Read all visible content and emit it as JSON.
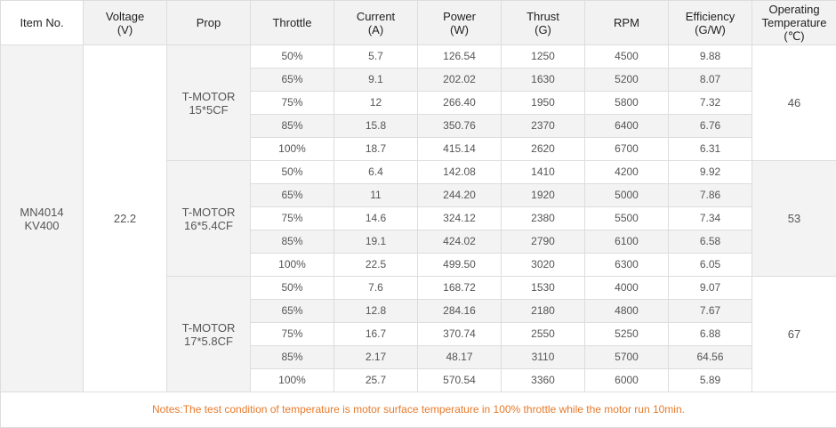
{
  "headers": {
    "item_no": [
      "Item No."
    ],
    "voltage": [
      "Voltage",
      "(V)"
    ],
    "prop": [
      "Prop"
    ],
    "throttle": [
      "Throttle"
    ],
    "current": [
      "Current",
      "(A)"
    ],
    "power": [
      "Power",
      "(W)"
    ],
    "thrust": [
      "Thrust",
      "(G)"
    ],
    "rpm": [
      "RPM"
    ],
    "efficiency": [
      "Efficiency",
      "(G/W)"
    ],
    "temperature": [
      "Operating",
      "Temperature",
      "(℃)"
    ]
  },
  "item": [
    "MN4014",
    "KV400"
  ],
  "voltage": "22.2",
  "groups": [
    {
      "prop": [
        "T-MOTOR",
        "15*5CF"
      ],
      "temperature": "46",
      "rows": [
        [
          "50%",
          "5.7",
          "126.54",
          "1250",
          "4500",
          "9.88"
        ],
        [
          "65%",
          "9.1",
          "202.02",
          "1630",
          "5200",
          "8.07"
        ],
        [
          "75%",
          "12",
          "266.40",
          "1950",
          "5800",
          "7.32"
        ],
        [
          "85%",
          "15.8",
          "350.76",
          "2370",
          "6400",
          "6.76"
        ],
        [
          "100%",
          "18.7",
          "415.14",
          "2620",
          "6700",
          "6.31"
        ]
      ]
    },
    {
      "prop": [
        "T-MOTOR",
        "16*5.4CF"
      ],
      "temperature": "53",
      "rows": [
        [
          "50%",
          "6.4",
          "142.08",
          "1410",
          "4200",
          "9.92"
        ],
        [
          "65%",
          "11",
          "244.20",
          "1920",
          "5000",
          "7.86"
        ],
        [
          "75%",
          "14.6",
          "324.12",
          "2380",
          "5500",
          "7.34"
        ],
        [
          "85%",
          "19.1",
          "424.02",
          "2790",
          "6100",
          "6.58"
        ],
        [
          "100%",
          "22.5",
          "499.50",
          "3020",
          "6300",
          "6.05"
        ]
      ]
    },
    {
      "prop": [
        "T-MOTOR",
        "17*5.8CF"
      ],
      "temperature": "67",
      "rows": [
        [
          "50%",
          "7.6",
          "168.72",
          "1530",
          "4000",
          "9.07"
        ],
        [
          "65%",
          "12.8",
          "284.16",
          "2180",
          "4800",
          "7.67"
        ],
        [
          "75%",
          "16.7",
          "370.74",
          "2550",
          "5250",
          "6.88"
        ],
        [
          "85%",
          "2.17",
          "48.17",
          "3110",
          "5700",
          "64.56"
        ],
        [
          "100%",
          "25.7",
          "570.54",
          "3360",
          "6000",
          "5.89"
        ]
      ]
    }
  ],
  "notes": "Notes:The test condition of temperature is motor surface temperature in 100% throttle while the motor run 10min.",
  "colors": {
    "header_bg": "#f2f2f2",
    "stripe_bg": "#f3f3f3",
    "border": "#dddddd",
    "notes_text": "#e87a2b"
  }
}
